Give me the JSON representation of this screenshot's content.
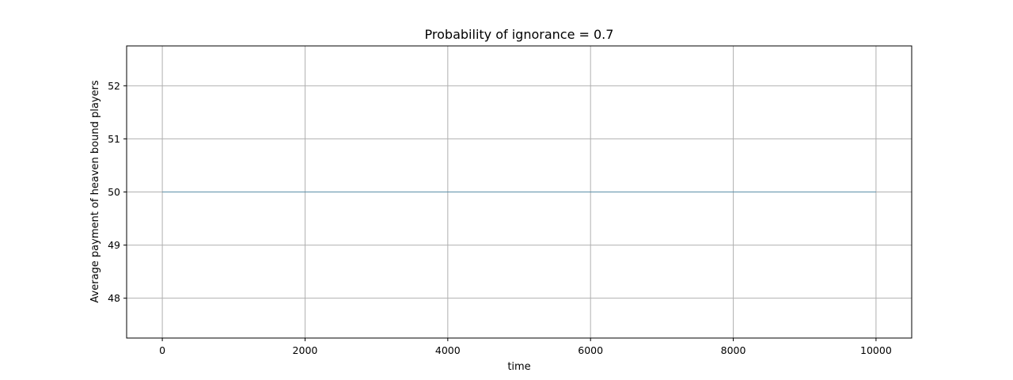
{
  "chart_data": {
    "type": "line",
    "title": "Probability of ignorance  = 0.7",
    "xlabel": "time",
    "ylabel": "Average payment of heaven bound players",
    "xlim": [
      -500,
      10500
    ],
    "ylim": [
      47.25,
      52.75
    ],
    "xticks": [
      0,
      2000,
      4000,
      6000,
      8000,
      10000
    ],
    "yticks": [
      48,
      49,
      50,
      51,
      52
    ],
    "grid": true,
    "series": [
      {
        "color": "#5b8fa8",
        "x": [
          0,
          10000
        ],
        "y": [
          50,
          50
        ]
      }
    ]
  }
}
